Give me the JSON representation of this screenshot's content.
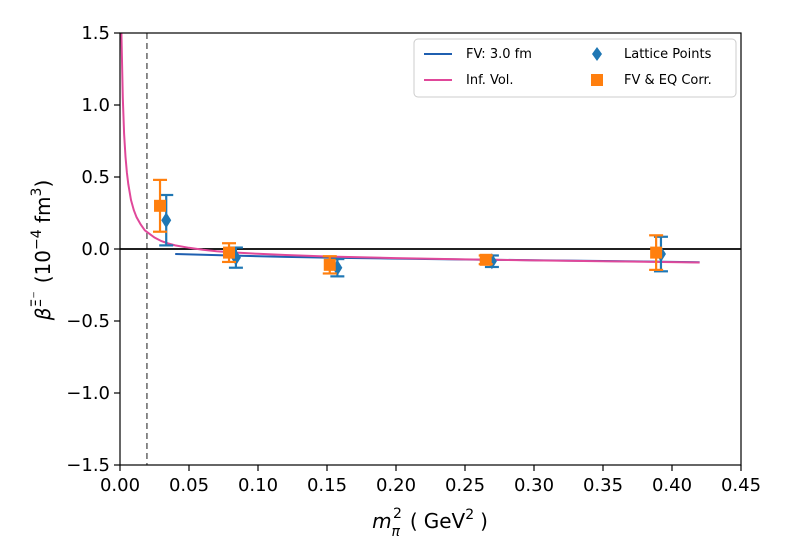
{
  "chart_data": {
    "type": "scatter",
    "xlabel": {
      "base": "m",
      "sub": "π",
      "sup": "2",
      "unit_before": "GeV",
      "unit_sup": "2",
      "open": "(",
      "close": ")"
    },
    "ylabel": {
      "symbol": "β",
      "sup": "Ξ⁻",
      "prefix": "(10",
      "exp": "−4",
      "unit": " fm",
      "unit_sup": "3",
      "close": ")"
    },
    "xlim": [
      0.0,
      0.45
    ],
    "ylim": [
      -1.5,
      1.5
    ],
    "x_ticks": [
      0.0,
      0.05,
      0.1,
      0.15,
      0.2,
      0.25,
      0.3,
      0.35,
      0.4,
      0.45
    ],
    "x_tick_labels": [
      "0.00",
      "0.05",
      "0.10",
      "0.15",
      "0.20",
      "0.25",
      "0.30",
      "0.35",
      "0.40",
      "0.45"
    ],
    "y_ticks": [
      -1.5,
      -1.0,
      -0.5,
      0.0,
      0.5,
      1.0,
      1.5
    ],
    "y_tick_labels": [
      "−1.5",
      "−1.0",
      "−0.5",
      "0.0",
      "0.5",
      "1.0",
      "1.5"
    ],
    "physical_point_x": 0.0195,
    "zero_line_y": 0.0,
    "series": [
      {
        "name": "FV: 3.0 fm",
        "kind": "line",
        "color": "#1f5fb0",
        "x": [
          0.04,
          0.08,
          0.12,
          0.16,
          0.2,
          0.25,
          0.3,
          0.35,
          0.42
        ],
        "y": [
          -0.035,
          -0.045,
          -0.055,
          -0.062,
          -0.067,
          -0.073,
          -0.078,
          -0.083,
          -0.092
        ]
      },
      {
        "name": "Inf. Vol.",
        "kind": "curve",
        "color": "#e0489a",
        "x": [
          0.001,
          0.002,
          0.003,
          0.004,
          0.005,
          0.006,
          0.008,
          0.01,
          0.012,
          0.015,
          0.018,
          0.02,
          0.025,
          0.03,
          0.035,
          0.04,
          0.05,
          0.06,
          0.07,
          0.08,
          0.1,
          0.12,
          0.15,
          0.2,
          0.25,
          0.3,
          0.35,
          0.42
        ],
        "y": [
          1.5,
          1.05,
          0.8,
          0.64,
          0.53,
          0.45,
          0.34,
          0.27,
          0.22,
          0.17,
          0.13,
          0.115,
          0.08,
          0.055,
          0.038,
          0.025,
          0.008,
          -0.005,
          -0.015,
          -0.022,
          -0.033,
          -0.042,
          -0.052,
          -0.063,
          -0.072,
          -0.079,
          -0.085,
          -0.094
        ]
      },
      {
        "name": "Lattice Points",
        "kind": "errorbar",
        "marker": "diamond",
        "color": "#1f77b4",
        "x": [
          0.0335,
          0.084,
          0.1575,
          0.2695,
          0.392
        ],
        "y": [
          0.2,
          -0.06,
          -0.13,
          -0.085,
          -0.035
        ],
        "err": [
          0.175,
          0.07,
          0.06,
          0.04,
          0.12
        ]
      },
      {
        "name": "FV & EQ Corr.",
        "kind": "errorbar",
        "marker": "square",
        "color": "#ff7f0e",
        "x": [
          0.029,
          0.079,
          0.152,
          0.265,
          0.3885
        ],
        "y": [
          0.3,
          -0.025,
          -0.11,
          -0.075,
          -0.025
        ],
        "err": [
          0.18,
          0.065,
          0.06,
          0.03,
          0.12
        ]
      }
    ],
    "legend": {
      "position": "top-right",
      "entries": [
        {
          "label": "FV: 3.0 fm",
          "series": 0
        },
        {
          "label": "Lattice Points",
          "series": 2
        },
        {
          "label": "Inf. Vol.",
          "series": 1
        },
        {
          "label": "FV & EQ Corr.",
          "series": 3
        }
      ]
    }
  }
}
